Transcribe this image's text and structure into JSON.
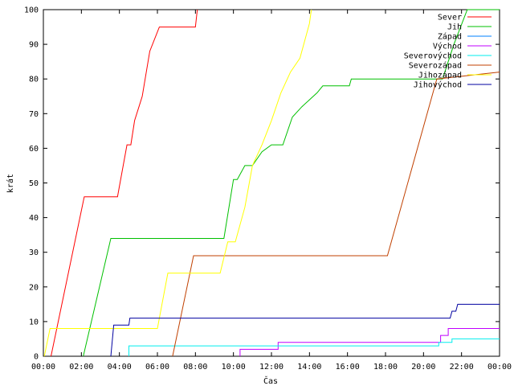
{
  "chart_data": {
    "type": "line",
    "xlabel": "Čas",
    "ylabel": "krát",
    "xlim": [
      0,
      24
    ],
    "ylim": [
      0,
      100
    ],
    "x_ticks": [
      0,
      2,
      4,
      6,
      8,
      10,
      12,
      14,
      16,
      18,
      20,
      22,
      24
    ],
    "x_tick_labels": [
      "00:00",
      "02:00",
      "04:00",
      "06:00",
      "08:00",
      "10:00",
      "12:00",
      "14:00",
      "16:00",
      "18:00",
      "20:00",
      "22:00",
      "00:00"
    ],
    "y_ticks": [
      0,
      10,
      20,
      30,
      40,
      50,
      60,
      70,
      80,
      90,
      100
    ],
    "y_tick_labels": [
      "0",
      "10",
      "20",
      "30",
      "40",
      "50",
      "60",
      "70",
      "80",
      "90",
      "100"
    ],
    "grid": false,
    "legend": "top-right",
    "series": [
      {
        "name": "Sever",
        "color": "#ff0000",
        "x": [
          0.4,
          2.15,
          3.9,
          4.4,
          4.6,
          4.8,
          5.2,
          5.6,
          6.1,
          8.0,
          8.1
        ],
        "y": [
          0,
          46,
          46,
          61,
          61,
          68,
          75,
          88,
          95,
          95,
          100
        ]
      },
      {
        "name": "Jih",
        "color": "#00c000",
        "x": [
          2.1,
          3.55,
          9.5,
          10.0,
          10.2,
          10.6,
          11.0,
          11.5,
          12.0,
          12.6,
          13.1,
          13.6,
          14.0,
          14.4,
          14.7,
          16.1,
          16.2,
          21.0,
          21.6,
          22.3,
          24.0
        ],
        "y": [
          0,
          34,
          34,
          51,
          51,
          55,
          55,
          59,
          61,
          61,
          69,
          72,
          74,
          76,
          78,
          78,
          80,
          80,
          90,
          100,
          100
        ]
      },
      {
        "name": "Západ",
        "color": "#0080ff",
        "x": [],
        "y": []
      },
      {
        "name": "Východ",
        "color": "#c000ff",
        "x": [
          10.35,
          10.35,
          12.35,
          12.35,
          20.9,
          20.9,
          21.3,
          21.3,
          24.0
        ],
        "y": [
          0,
          2,
          2,
          4,
          4,
          6,
          6,
          8,
          8
        ]
      },
      {
        "name": "Severovýchod",
        "color": "#00eeee",
        "x": [
          4.5,
          4.5,
          20.8,
          20.8,
          21.5,
          21.5,
          24.0
        ],
        "y": [
          0,
          3,
          3,
          4,
          4,
          5,
          5
        ]
      },
      {
        "name": "Severozápad",
        "color": "#c04000",
        "x": [
          6.8,
          7.9,
          18.1,
          20.7,
          24.0
        ],
        "y": [
          0,
          29,
          29,
          80,
          82
        ]
      },
      {
        "name": "Jihozápad",
        "color": "#ffff00",
        "x": [
          0.05,
          0.35,
          6.0,
          6.55,
          9.3,
          9.7,
          10.1,
          10.6,
          11.0,
          11.5,
          12.0,
          12.5,
          13.0,
          13.5,
          14.0,
          14.1
        ],
        "y": [
          0,
          8,
          8,
          24,
          24,
          33,
          33,
          43,
          55,
          61,
          68,
          76,
          82,
          86,
          96,
          100
        ]
      },
      {
        "name": "Jihovýchod",
        "color": "#0000a0",
        "x": [
          3.55,
          3.7,
          4.5,
          4.55,
          21.4,
          21.5,
          21.7,
          21.8,
          24.0
        ],
        "y": [
          0,
          9,
          9,
          11,
          11,
          13,
          13,
          15,
          15
        ]
      }
    ]
  }
}
